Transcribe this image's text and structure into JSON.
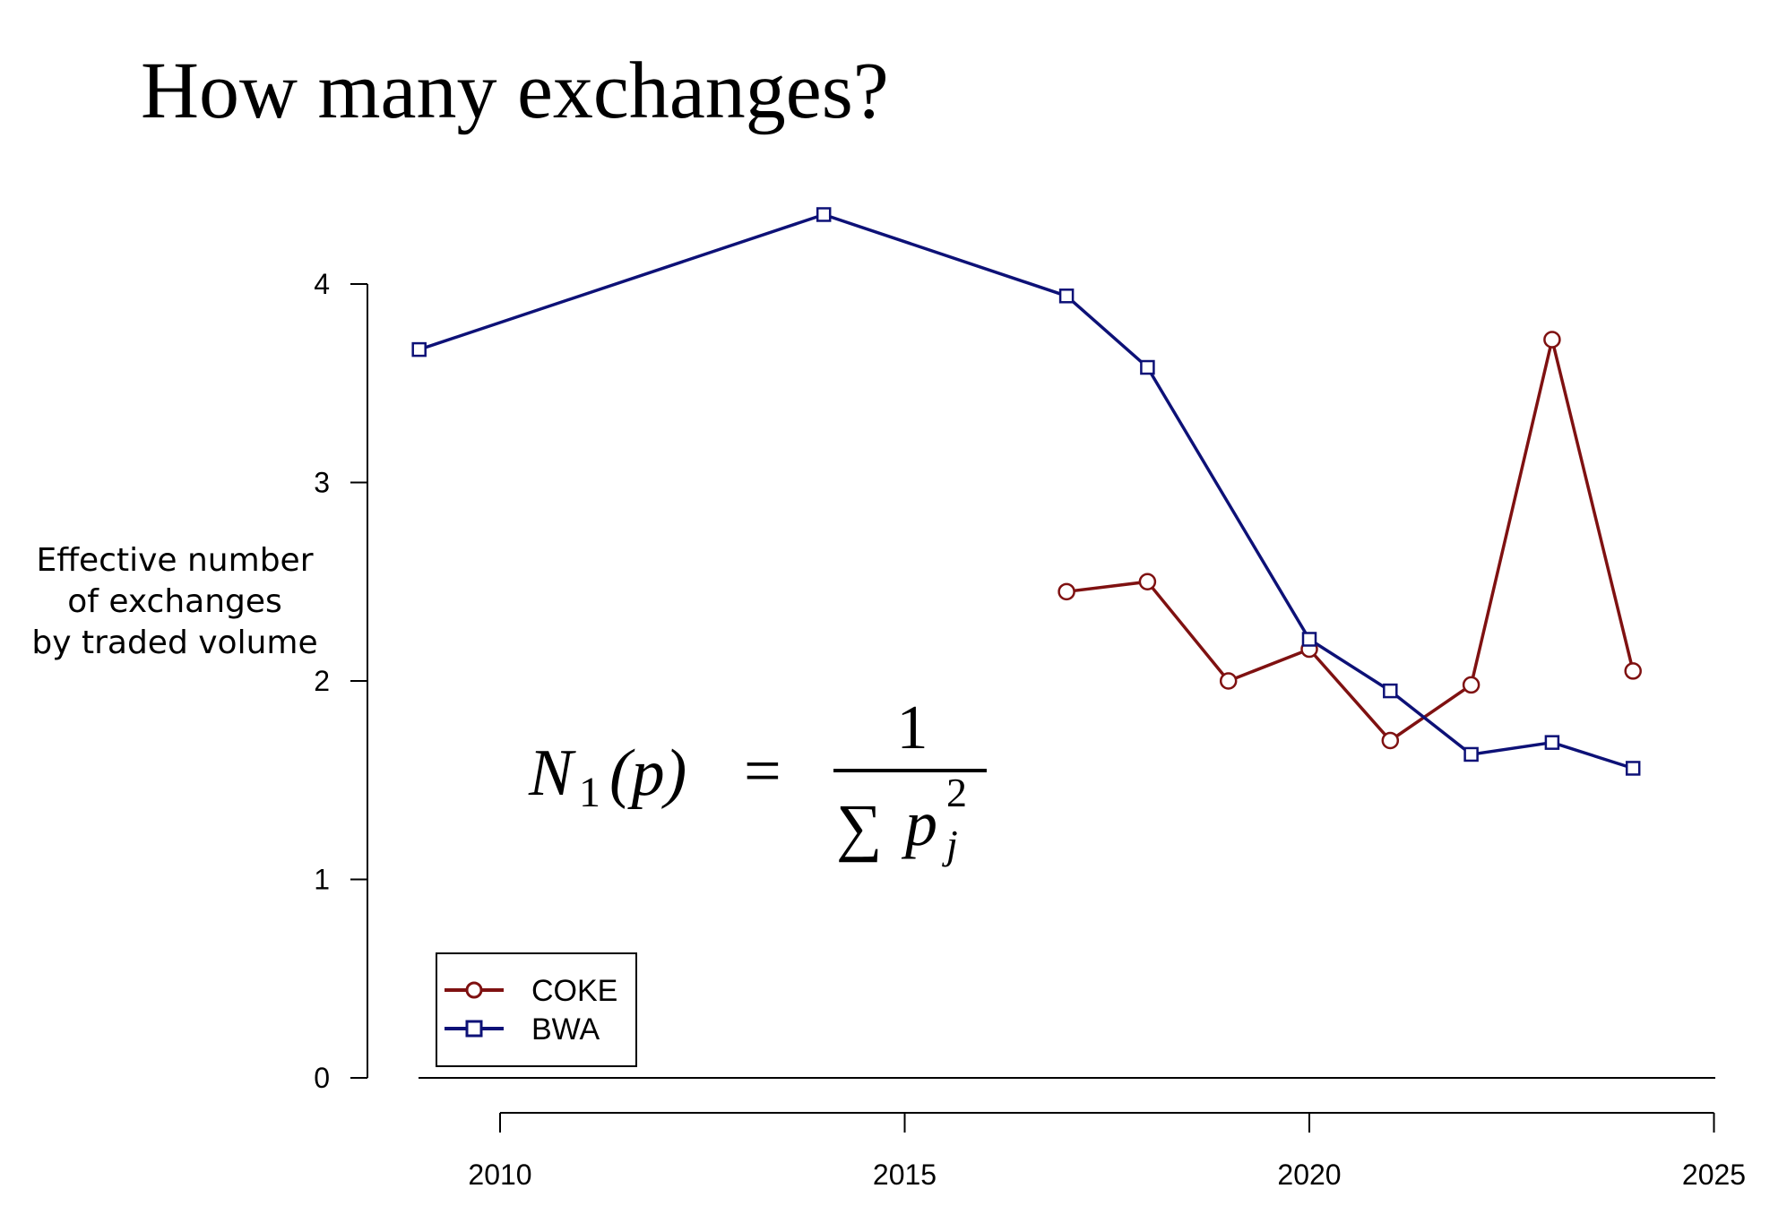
{
  "slide": {
    "title": "How many exchanges?",
    "formula": {
      "lhs_symbol": "N",
      "lhs_subscript": "1",
      "lhs_arg": "(p)",
      "equals": "=",
      "numerator": "1",
      "sum": "∑",
      "denom_var": "p",
      "denom_sub": "j",
      "denom_sup": "2"
    }
  },
  "chart_data": {
    "type": "line",
    "title": "",
    "xlabel": "",
    "ylabel_lines": [
      "Effective number",
      "of exchanges",
      "by traded volume"
    ],
    "xlim": [
      2008.5,
      2025
    ],
    "ylim": [
      0,
      4.35
    ],
    "xticks": [
      2010,
      2015,
      2020,
      2025
    ],
    "yticks": [
      0,
      1,
      2,
      3,
      4
    ],
    "grid": false,
    "legend_position": "bottom-left",
    "series": [
      {
        "name": "COKE",
        "color": "#7f1111",
        "marker": "circle",
        "x": [
          2017,
          2018,
          2019,
          2020,
          2021,
          2022,
          2023,
          2024
        ],
        "values": [
          2.45,
          2.5,
          2.0,
          2.16,
          1.7,
          1.98,
          3.72,
          2.05
        ]
      },
      {
        "name": "BWA",
        "color": "#0d1177",
        "marker": "square",
        "x": [
          2009,
          2014,
          2017,
          2018,
          2020,
          2021,
          2022,
          2023,
          2024
        ],
        "values": [
          3.67,
          4.35,
          3.94,
          3.58,
          2.21,
          1.95,
          1.63,
          1.69,
          1.56
        ]
      }
    ]
  }
}
